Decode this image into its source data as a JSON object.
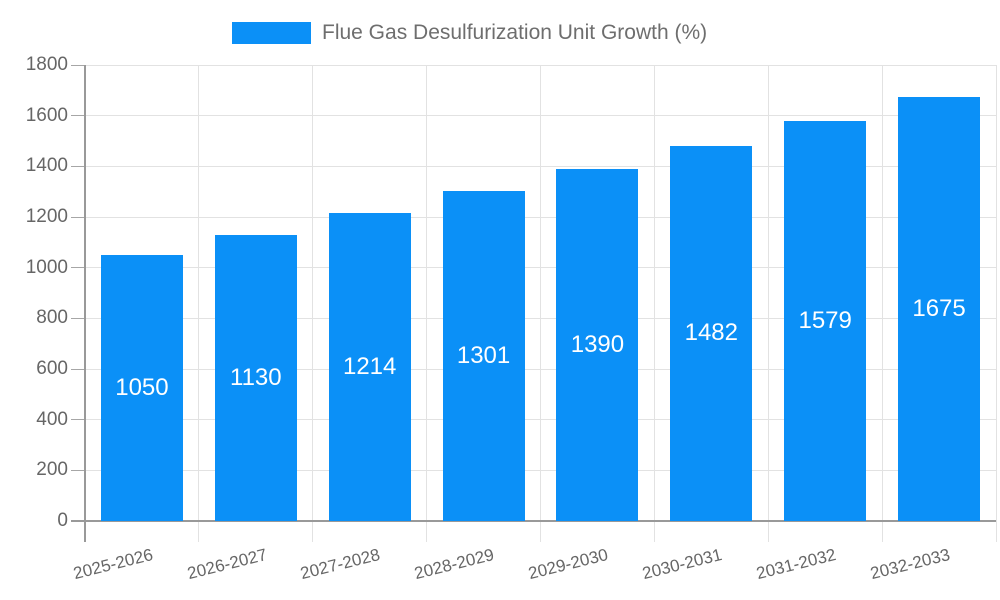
{
  "chart_data": {
    "type": "bar",
    "title": "Flue Gas Desulfurization Unit Growth (%)",
    "legend_label": "Flue Gas Desulfurization Unit Growth (%)",
    "legend_position": "top",
    "categories": [
      "2025-2026",
      "2026-2027",
      "2027-2028",
      "2028-2029",
      "2029-2030",
      "2030-2031",
      "2031-2032",
      "2032-2033"
    ],
    "values": [
      1050,
      1130,
      1214,
      1301,
      1390,
      1482,
      1579,
      1675
    ],
    "xlabel": "",
    "ylabel": "",
    "ylim": [
      0,
      1800
    ],
    "ytick_step": 200,
    "yticks": [
      0,
      200,
      400,
      600,
      800,
      1000,
      1200,
      1400,
      1600,
      1800
    ],
    "grid": true,
    "bar_color": "#0b90f7",
    "value_label_color": "#ffffff",
    "axis_text_color": "#666666",
    "grid_color": "#e2e2e2",
    "axis_line_color": "#999999"
  }
}
